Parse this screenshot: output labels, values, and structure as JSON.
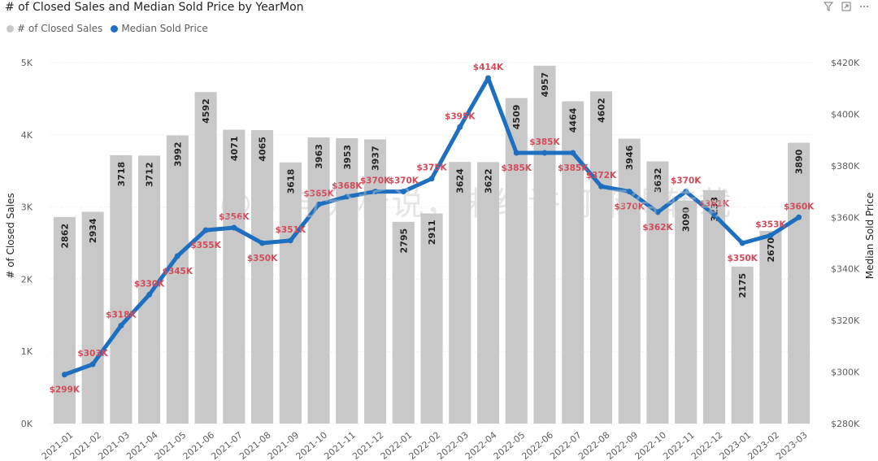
{
  "header": {
    "title": "# of Closed Sales and Median Sold Price by YearMon"
  },
  "toolbar": {
    "icons": [
      "filter-icon",
      "focus-mode-icon",
      "more-options-icon"
    ]
  },
  "watermark": "@BI与分析说，未经许可不得转载",
  "chart_data": {
    "type": "bar",
    "title": "# of Closed Sales and Median Sold Price by YearMon",
    "categories": [
      "2021-01",
      "2021-02",
      "2021-03",
      "2021-04",
      "2021-05",
      "2021-06",
      "2021-07",
      "2021-08",
      "2021-09",
      "2021-10",
      "2021-11",
      "2021-12",
      "2022-01",
      "2022-02",
      "2022-03",
      "2022-04",
      "2022-05",
      "2022-06",
      "2022-07",
      "2022-08",
      "2022-09",
      "2022-10",
      "2022-11",
      "2022-12",
      "2023-01",
      "2023-02",
      "2023-03"
    ],
    "series": [
      {
        "name": "# of Closed Sales",
        "type": "bar",
        "axis": "left",
        "color": "#c8c8c8",
        "values": [
          2862,
          2934,
          3718,
          3712,
          3992,
          4592,
          4071,
          4065,
          3618,
          3963,
          3953,
          3937,
          2795,
          2911,
          3624,
          3622,
          4509,
          4957,
          4464,
          4602,
          3946,
          3632,
          3090,
          3233,
          2175,
          2670,
          3890
        ]
      },
      {
        "name": "Median Sold Price",
        "type": "line",
        "axis": "right",
        "color": "#1f6fc0",
        "values": [
          299,
          303,
          318,
          330,
          345,
          355,
          356,
          350,
          351,
          365,
          368,
          370,
          370,
          375,
          395,
          414,
          385,
          385,
          385,
          372,
          370,
          362,
          370,
          361,
          350,
          353,
          360
        ],
        "labels": [
          "$299K",
          "$303K",
          "$318K",
          "$330K",
          "$345K",
          "$355K",
          "$356K",
          "$350K",
          "$351K",
          "$365K",
          "$368K",
          "$370K",
          "$370K",
          "$375K",
          "$395K",
          "$414K",
          "$385K",
          "$385K",
          "$385K",
          "$372K",
          "$370K",
          "$362K",
          "$370K",
          "$361K",
          "$350K",
          "$353K",
          "$360K"
        ],
        "label_color": "#d14b5a"
      }
    ],
    "xlabel": "",
    "ylabel_left": "# of Closed Sales",
    "ylabel_right": "Median Sold Price",
    "ylim_left": [
      0,
      5000
    ],
    "yticks_left": [
      0,
      1000,
      2000,
      3000,
      4000,
      5000
    ],
    "yticks_left_labels": [
      "0K",
      "1K",
      "2K",
      "3K",
      "4K",
      "5K"
    ],
    "ylim_right": [
      280,
      420
    ],
    "yticks_right": [
      280,
      300,
      320,
      340,
      360,
      380,
      400,
      420
    ],
    "yticks_right_labels": [
      "$280K",
      "$300K",
      "$320K",
      "$340K",
      "$360K",
      "$380K",
      "$400K",
      "$420K"
    ],
    "grid": true,
    "legend_position": "top-left"
  }
}
